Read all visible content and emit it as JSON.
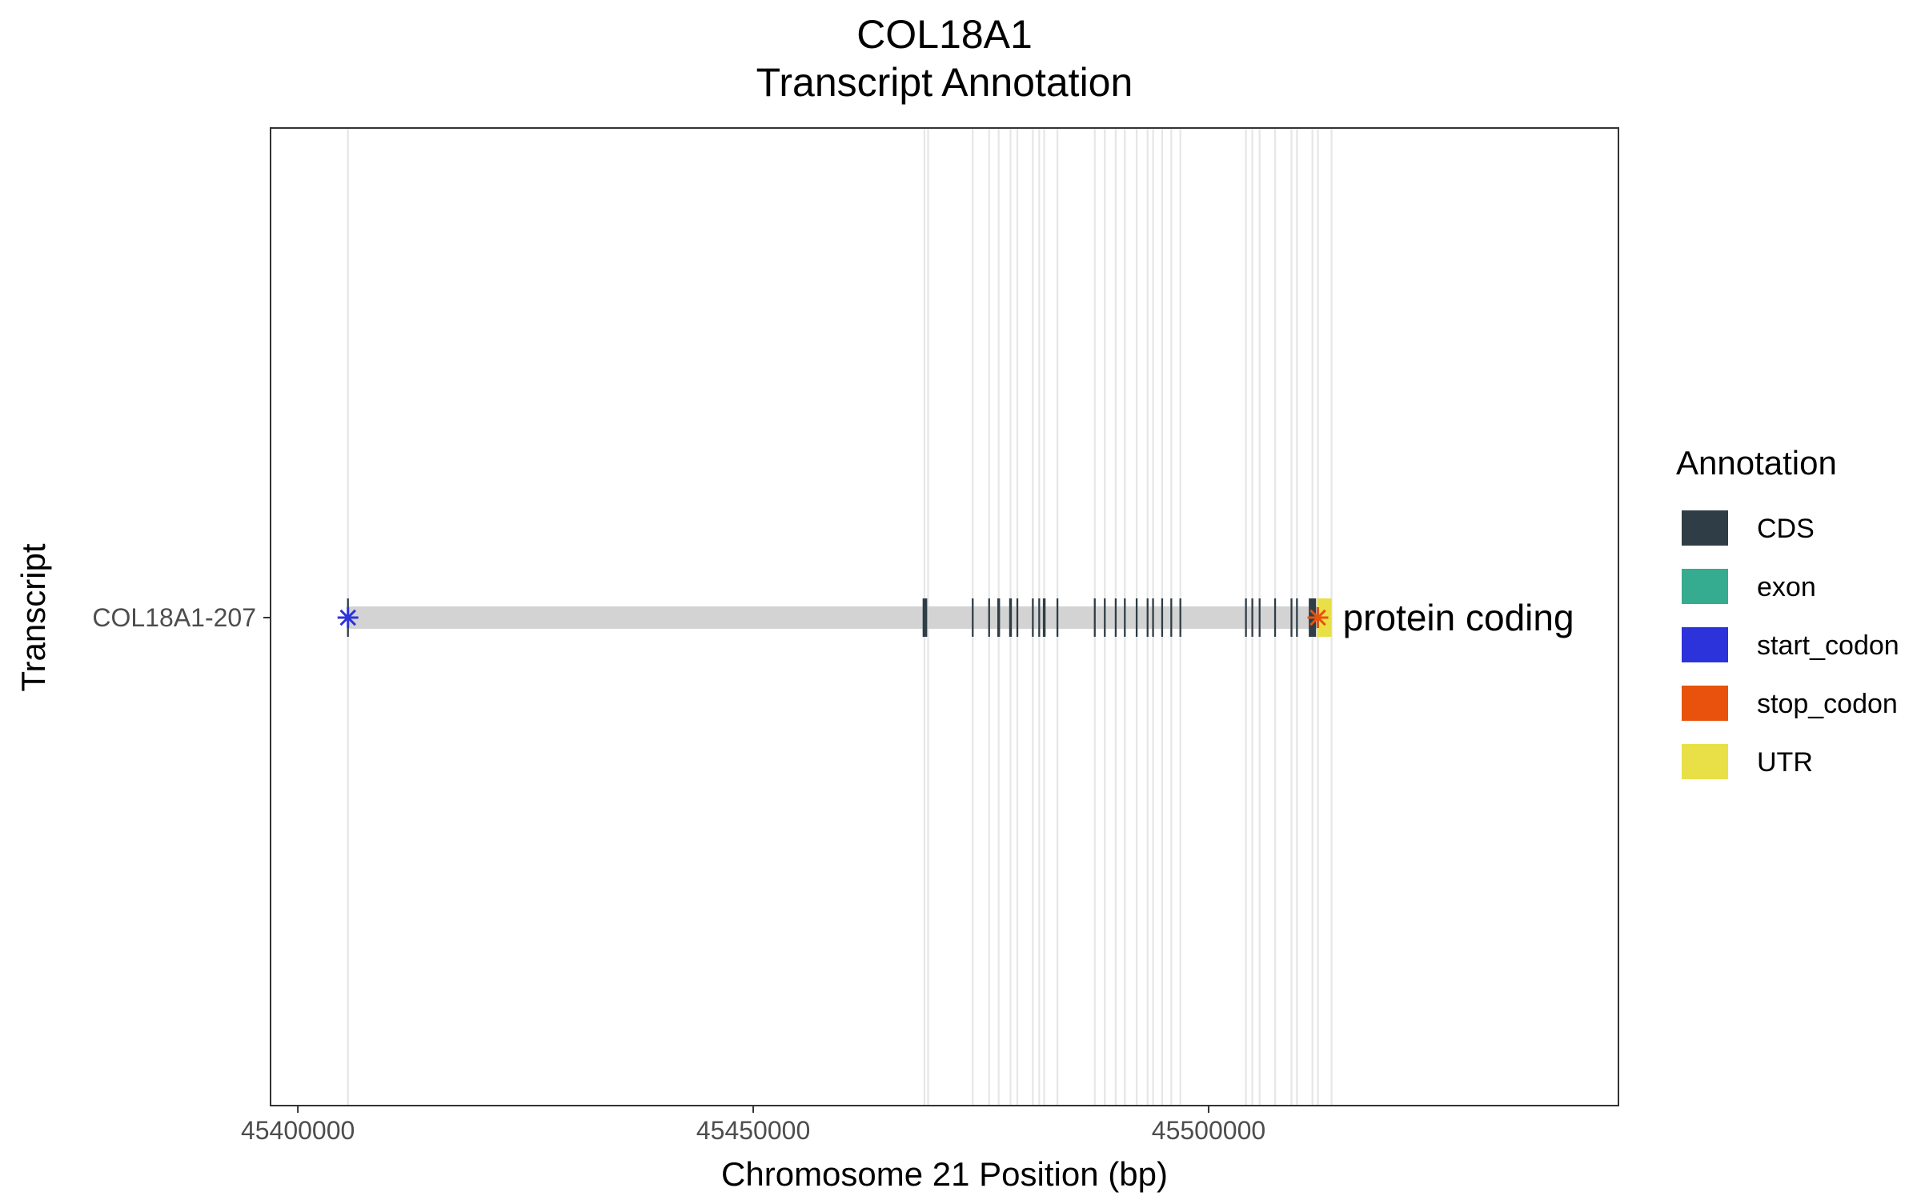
{
  "chart_data": {
    "type": "gene-transcript-annotation",
    "title": "COL18A1",
    "subtitle": "Transcript Annotation",
    "xlabel": "Chromosome 21 Position (bp)",
    "ylabel": "Transcript",
    "xlim": [
      45397000,
      45545000
    ],
    "x_ticks": [
      {
        "value": 45400000,
        "label": "45400000"
      },
      {
        "value": 45450000,
        "label": "45450000"
      },
      {
        "value": 45500000,
        "label": "45500000"
      }
    ],
    "grid": "vertical lines at feature boundaries",
    "legend_position": "right",
    "legend": {
      "title": "Annotation",
      "items": [
        {
          "label": "CDS",
          "color": "#2f3d46"
        },
        {
          "label": "exon",
          "color": "#35ab8f"
        },
        {
          "label": "start_codon",
          "color": "#2c33db"
        },
        {
          "label": "stop_codon",
          "color": "#e8520c"
        },
        {
          "label": "UTR",
          "color": "#e8e046"
        }
      ]
    },
    "transcripts": [
      {
        "name": "COL18A1-207",
        "biotype_label": "protein coding",
        "span": [
          45405500,
          45513500
        ],
        "intron_color": "#d3d3d3",
        "start_codon": 45405500,
        "stop_codon": 45512000,
        "cds": [
          [
            45405400,
            45405600
          ],
          [
            45468600,
            45469100
          ],
          [
            45474000,
            45474200
          ],
          [
            45475800,
            45476000
          ],
          [
            45476800,
            45477100
          ],
          [
            45478100,
            45478400
          ],
          [
            45478900,
            45479100
          ],
          [
            45480600,
            45480800
          ],
          [
            45481300,
            45481500
          ],
          [
            45481800,
            45482100
          ],
          [
            45483300,
            45483500
          ],
          [
            45487400,
            45487600
          ],
          [
            45488500,
            45488700
          ],
          [
            45489700,
            45489900
          ],
          [
            45490700,
            45490900
          ],
          [
            45492000,
            45492200
          ],
          [
            45493200,
            45493400
          ],
          [
            45493800,
            45494000
          ],
          [
            45494800,
            45495000
          ],
          [
            45495800,
            45496000
          ],
          [
            45496800,
            45497000
          ],
          [
            45504000,
            45504200
          ],
          [
            45504700,
            45504900
          ],
          [
            45505500,
            45505700
          ],
          [
            45507200,
            45507400
          ],
          [
            45509000,
            45509200
          ],
          [
            45509600,
            45509800
          ],
          [
            45511000,
            45511800
          ]
        ],
        "utr": [
          [
            45511900,
            45513500
          ]
        ],
        "exon_boundaries": [
          45405500,
          45468800,
          45469200,
          45474100,
          45475900,
          45476950,
          45478250,
          45479000,
          45480700,
          45481400,
          45481950,
          45483400,
          45487500,
          45488600,
          45489800,
          45490800,
          45492100,
          45493300,
          45493900,
          45494900,
          45495900,
          45496900,
          45504100,
          45504800,
          45505600,
          45507300,
          45509100,
          45509700,
          45511400,
          45512000,
          45513500
        ]
      }
    ]
  }
}
